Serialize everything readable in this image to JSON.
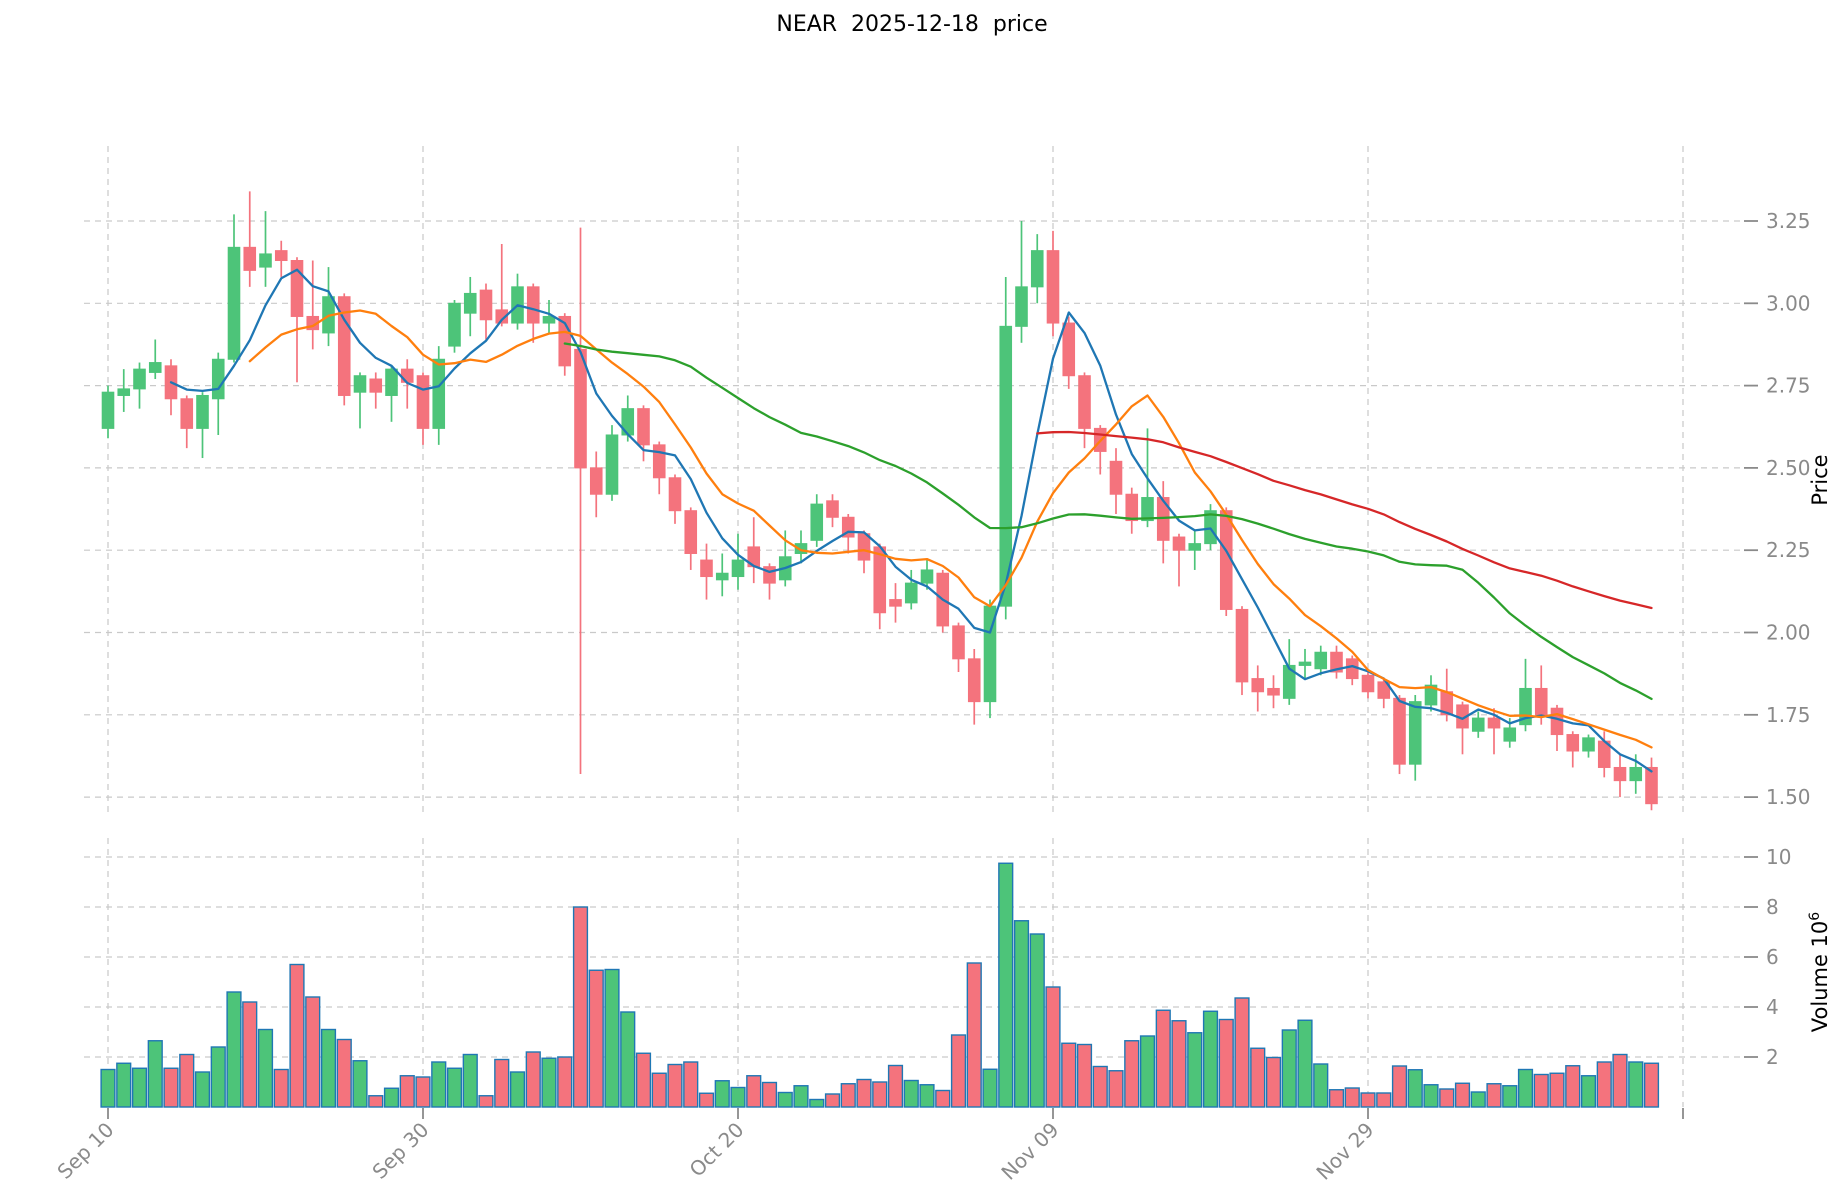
{
  "title": "NEAR  2025-12-18  price",
  "chart_data": {
    "type": "candlestick",
    "title": "NEAR  2025-12-18  price",
    "symbol": "NEAR",
    "as_of_date": "2025-12-18",
    "start_date": "2025-09-10",
    "grid": true,
    "price_axis": {
      "label": "Price",
      "side": "right",
      "ticks": [
        "3.25",
        "3.00",
        "2.75",
        "2.50",
        "2.25",
        "2.00",
        "1.75",
        "1.50"
      ],
      "tick_values": [
        3.25,
        3.0,
        2.75,
        2.5,
        2.25,
        2.0,
        1.75,
        1.5
      ],
      "range": [
        1.45,
        3.48
      ]
    },
    "volume_axis": {
      "label": "Volume",
      "unit_base": "10",
      "unit_exponent": "6",
      "side": "right",
      "ticks": [
        "2",
        "4",
        "6",
        "8",
        "10"
      ],
      "tick_values": [
        2,
        4,
        6,
        8,
        10
      ],
      "range": [
        0,
        10.75
      ]
    },
    "x_ticks": [
      {
        "day": 0,
        "label": "Sep 10"
      },
      {
        "day": 20,
        "label": "Sep 30"
      },
      {
        "day": 40,
        "label": "Oct 20"
      },
      {
        "day": 60,
        "label": "Nov 09"
      },
      {
        "day": 80,
        "label": "Nov 29"
      },
      {
        "day": 100,
        "label": ""
      }
    ],
    "moving_averages": [
      {
        "name": "mav5",
        "window": 5,
        "color": "#1f77b4"
      },
      {
        "name": "mav10",
        "window": 10,
        "color": "#ff7f0e"
      },
      {
        "name": "mav30",
        "window": 30,
        "color": "#2ca02c"
      },
      {
        "name": "mav60",
        "window": 60,
        "color": "#d62728"
      }
    ],
    "colors": {
      "up": "#4dc479",
      "down": "#f4737d",
      "volume_edge": "#1f77b4",
      "grid": "#c9c9c9",
      "tick_label": "#8a8a8a",
      "title": "#000000",
      "background": "#ffffff"
    },
    "ohlc": [
      [
        2.62,
        2.75,
        2.59,
        2.73
      ],
      [
        2.72,
        2.8,
        2.67,
        2.74
      ],
      [
        2.74,
        2.82,
        2.68,
        2.8
      ],
      [
        2.79,
        2.89,
        2.77,
        2.82
      ],
      [
        2.81,
        2.83,
        2.66,
        2.71
      ],
      [
        2.71,
        2.72,
        2.56,
        2.62
      ],
      [
        2.62,
        2.73,
        2.53,
        2.72
      ],
      [
        2.71,
        2.85,
        2.6,
        2.83
      ],
      [
        2.83,
        3.27,
        2.82,
        3.17
      ],
      [
        3.17,
        3.34,
        3.05,
        3.1
      ],
      [
        3.11,
        3.28,
        3.05,
        3.15
      ],
      [
        3.16,
        3.19,
        3.08,
        3.13
      ],
      [
        3.13,
        3.14,
        2.76,
        2.96
      ],
      [
        2.96,
        3.13,
        2.86,
        2.92
      ],
      [
        2.91,
        3.11,
        2.87,
        3.02
      ],
      [
        3.02,
        3.03,
        2.69,
        2.72
      ],
      [
        2.73,
        2.79,
        2.62,
        2.78
      ],
      [
        2.77,
        2.79,
        2.68,
        2.73
      ],
      [
        2.72,
        2.81,
        2.64,
        2.8
      ],
      [
        2.8,
        2.83,
        2.68,
        2.76
      ],
      [
        2.78,
        2.79,
        2.57,
        2.62
      ],
      [
        2.62,
        2.87,
        2.57,
        2.83
      ],
      [
        2.87,
        3.01,
        2.85,
        3.0
      ],
      [
        2.97,
        3.08,
        2.9,
        3.03
      ],
      [
        3.04,
        3.06,
        2.89,
        2.95
      ],
      [
        2.98,
        3.18,
        2.93,
        2.94
      ],
      [
        2.94,
        3.09,
        2.92,
        3.05
      ],
      [
        3.05,
        3.06,
        2.88,
        2.94
      ],
      [
        2.94,
        3.01,
        2.91,
        2.96
      ],
      [
        2.96,
        2.97,
        2.78,
        2.81
      ],
      [
        2.86,
        3.23,
        1.57,
        2.5
      ],
      [
        2.5,
        2.55,
        2.35,
        2.42
      ],
      [
        2.42,
        2.63,
        2.4,
        2.6
      ],
      [
        2.6,
        2.72,
        2.58,
        2.68
      ],
      [
        2.68,
        2.69,
        2.52,
        2.57
      ],
      [
        2.57,
        2.58,
        2.42,
        2.47
      ],
      [
        2.47,
        2.48,
        2.33,
        2.37
      ],
      [
        2.37,
        2.38,
        2.19,
        2.24
      ],
      [
        2.22,
        2.27,
        2.1,
        2.17
      ],
      [
        2.16,
        2.24,
        2.11,
        2.18
      ],
      [
        2.17,
        2.3,
        2.13,
        2.22
      ],
      [
        2.26,
        2.35,
        2.15,
        2.2
      ],
      [
        2.2,
        2.21,
        2.1,
        2.15
      ],
      [
        2.16,
        2.31,
        2.14,
        2.23
      ],
      [
        2.24,
        2.31,
        2.21,
        2.27
      ],
      [
        2.28,
        2.42,
        2.26,
        2.39
      ],
      [
        2.4,
        2.42,
        2.32,
        2.35
      ],
      [
        2.35,
        2.36,
        2.24,
        2.29
      ],
      [
        2.3,
        2.31,
        2.18,
        2.22
      ],
      [
        2.26,
        2.27,
        2.01,
        2.06
      ],
      [
        2.1,
        2.15,
        2.03,
        2.08
      ],
      [
        2.09,
        2.19,
        2.07,
        2.15
      ],
      [
        2.15,
        2.22,
        2.13,
        2.19
      ],
      [
        2.18,
        2.19,
        2.0,
        2.02
      ],
      [
        2.02,
        2.03,
        1.88,
        1.92
      ],
      [
        1.92,
        1.95,
        1.72,
        1.79
      ],
      [
        1.79,
        2.1,
        1.74,
        2.08
      ],
      [
        2.08,
        3.08,
        2.04,
        2.93
      ],
      [
        2.93,
        3.25,
        2.88,
        3.05
      ],
      [
        3.05,
        3.21,
        3.0,
        3.16
      ],
      [
        3.16,
        3.22,
        2.9,
        2.94
      ],
      [
        2.94,
        2.96,
        2.74,
        2.78
      ],
      [
        2.78,
        2.79,
        2.56,
        2.62
      ],
      [
        2.62,
        2.63,
        2.48,
        2.55
      ],
      [
        2.52,
        2.56,
        2.36,
        2.42
      ],
      [
        2.42,
        2.44,
        2.3,
        2.34
      ],
      [
        2.34,
        2.62,
        2.32,
        2.41
      ],
      [
        2.41,
        2.46,
        2.21,
        2.28
      ],
      [
        2.29,
        2.3,
        2.14,
        2.25
      ],
      [
        2.25,
        2.31,
        2.19,
        2.27
      ],
      [
        2.27,
        2.39,
        2.25,
        2.37
      ],
      [
        2.37,
        2.38,
        2.05,
        2.07
      ],
      [
        2.07,
        2.08,
        1.81,
        1.85
      ],
      [
        1.86,
        1.9,
        1.76,
        1.82
      ],
      [
        1.83,
        1.87,
        1.77,
        1.81
      ],
      [
        1.8,
        1.98,
        1.78,
        1.9
      ],
      [
        1.9,
        1.95,
        1.86,
        1.91
      ],
      [
        1.89,
        1.96,
        1.87,
        1.94
      ],
      [
        1.94,
        1.96,
        1.86,
        1.88
      ],
      [
        1.92,
        1.93,
        1.84,
        1.86
      ],
      [
        1.87,
        1.88,
        1.8,
        1.82
      ],
      [
        1.85,
        1.86,
        1.77,
        1.8
      ],
      [
        1.8,
        1.81,
        1.57,
        1.6
      ],
      [
        1.6,
        1.81,
        1.55,
        1.79
      ],
      [
        1.78,
        1.87,
        1.76,
        1.84
      ],
      [
        1.82,
        1.89,
        1.73,
        1.75
      ],
      [
        1.78,
        1.79,
        1.63,
        1.71
      ],
      [
        1.7,
        1.76,
        1.68,
        1.74
      ],
      [
        1.74,
        1.77,
        1.63,
        1.71
      ],
      [
        1.67,
        1.74,
        1.65,
        1.71
      ],
      [
        1.72,
        1.92,
        1.7,
        1.83
      ],
      [
        1.83,
        1.9,
        1.72,
        1.75
      ],
      [
        1.77,
        1.78,
        1.64,
        1.69
      ],
      [
        1.69,
        1.7,
        1.59,
        1.64
      ],
      [
        1.64,
        1.69,
        1.62,
        1.68
      ],
      [
        1.67,
        1.7,
        1.56,
        1.59
      ],
      [
        1.59,
        1.63,
        1.5,
        1.55
      ],
      [
        1.55,
        1.63,
        1.51,
        1.59
      ],
      [
        1.59,
        1.62,
        1.46,
        1.48
      ]
    ],
    "volume_millions": [
      1.5,
      1.75,
      1.55,
      2.65,
      1.55,
      2.1,
      1.4,
      2.4,
      4.6,
      4.2,
      3.1,
      1.5,
      5.7,
      4.4,
      3.1,
      2.7,
      1.85,
      0.45,
      0.75,
      1.25,
      1.2,
      1.8,
      1.55,
      2.1,
      0.45,
      1.9,
      1.4,
      2.2,
      1.95,
      2.0,
      8.0,
      5.47,
      5.5,
      3.8,
      2.15,
      1.35,
      1.7,
      1.8,
      0.55,
      1.05,
      0.78,
      1.25,
      0.98,
      0.58,
      0.85,
      0.3,
      0.52,
      0.93,
      1.1,
      1.0,
      1.66,
      1.06,
      0.89,
      0.66,
      2.88,
      5.76,
      1.51,
      9.75,
      7.45,
      6.92,
      4.8,
      2.55,
      2.5,
      1.62,
      1.45,
      2.65,
      2.84,
      3.87,
      3.45,
      2.97,
      3.83,
      3.5,
      4.36,
      2.35,
      1.98,
      3.08,
      3.47,
      1.72,
      0.69,
      0.76,
      0.56,
      0.56,
      1.64,
      1.49,
      0.89,
      0.72,
      0.95,
      0.6,
      0.93,
      0.85,
      1.5,
      1.3,
      1.35,
      1.65,
      1.25,
      1.8,
      2.1,
      1.8,
      1.75
    ]
  }
}
